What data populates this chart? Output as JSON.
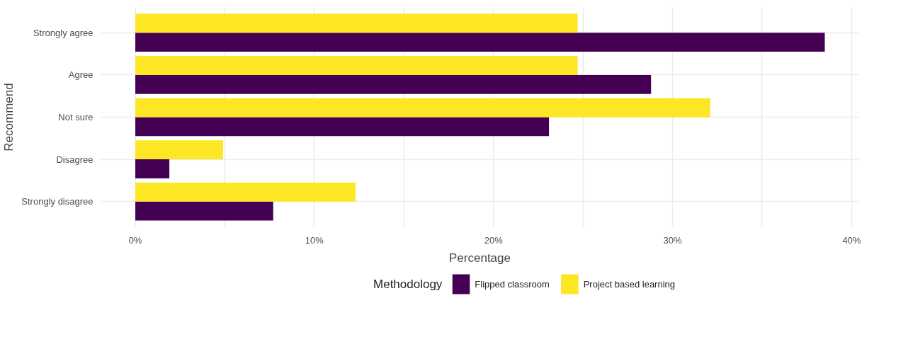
{
  "chart_data": {
    "type": "bar",
    "orientation": "horizontal",
    "xlabel": "Percentage",
    "ylabel": "Recommend",
    "legend_title": "Methodology",
    "categories": [
      "Strongly agree",
      "Agree",
      "Not sure",
      "Disagree",
      "Strongly disagree"
    ],
    "series": [
      {
        "name": "Flipped classroom",
        "color": "#440154",
        "values": [
          38.5,
          28.8,
          23.1,
          1.9,
          7.7
        ]
      },
      {
        "name": "Project based learning",
        "color": "#fde725",
        "values": [
          24.7,
          24.7,
          32.1,
          4.9,
          12.3
        ]
      }
    ],
    "xlim": [
      -1.92,
      40.4
    ],
    "xticks": [
      {
        "value": 0,
        "label": "0%"
      },
      {
        "value": 5,
        "label": null
      },
      {
        "value": 10,
        "label": "10%"
      },
      {
        "value": 15,
        "label": null
      },
      {
        "value": 20,
        "label": "20%"
      },
      {
        "value": 25,
        "label": null
      },
      {
        "value": 30,
        "label": "30%"
      },
      {
        "value": 35,
        "label": null
      },
      {
        "value": 40,
        "label": "40%"
      }
    ],
    "grid": true,
    "legend": "bottom"
  }
}
